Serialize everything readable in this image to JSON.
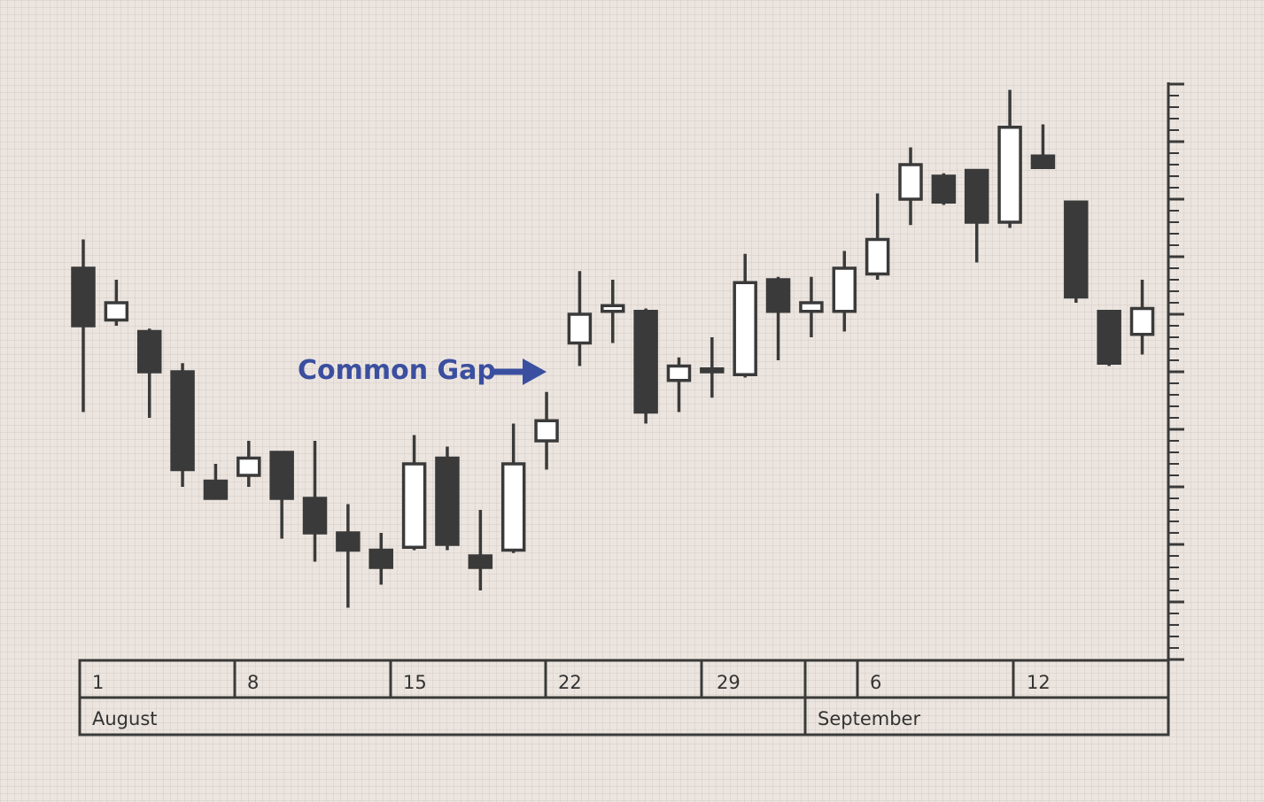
{
  "colors": {
    "candle": "#3a3a3a",
    "hollow_fill": "#ffffff",
    "frame": "#3a3a3a",
    "annotation": "#3a4f9f"
  },
  "annotation": {
    "text": "Common Gap"
  },
  "chart_data": {
    "type": "candlestick",
    "xlabel": "",
    "ylabel": "",
    "ylim": [
      0,
      100
    ],
    "y_tick_labels": "none",
    "grid": true,
    "sessions": [
      {
        "open": 68.0,
        "high": 73.0,
        "low": 43.0,
        "close": 58.0
      },
      {
        "open": 59.0,
        "high": 66.0,
        "low": 58.0,
        "close": 62.0
      },
      {
        "open": 57.0,
        "high": 57.5,
        "low": 42.0,
        "close": 50.0
      },
      {
        "open": 50.0,
        "high": 51.5,
        "low": 30.0,
        "close": 33.0
      },
      {
        "open": 31.0,
        "high": 34.0,
        "low": 28.0,
        "close": 28.0
      },
      {
        "open": 32.0,
        "high": 38.0,
        "low": 30.0,
        "close": 35.0
      },
      {
        "open": 36.0,
        "high": 36.0,
        "low": 21.0,
        "close": 28.0
      },
      {
        "open": 28.0,
        "high": 38.0,
        "low": 17.0,
        "close": 22.0
      },
      {
        "open": 22.0,
        "high": 27.0,
        "low": 9.0,
        "close": 19.0
      },
      {
        "open": 19.0,
        "high": 22.0,
        "low": 13.0,
        "close": 16.0
      },
      {
        "open": 19.5,
        "high": 39.0,
        "low": 19.0,
        "close": 34.0
      },
      {
        "open": 35.0,
        "high": 37.0,
        "low": 19.0,
        "close": 20.0
      },
      {
        "open": 18.0,
        "high": 26.0,
        "low": 12.0,
        "close": 16.0
      },
      {
        "open": 19.0,
        "high": 41.0,
        "low": 18.5,
        "close": 34.0
      },
      {
        "open": 38.0,
        "high": 46.5,
        "low": 33.0,
        "close": 41.5
      },
      {
        "open": 55.0,
        "high": 67.5,
        "low": 51.0,
        "close": 60.0
      },
      {
        "open": 60.5,
        "high": 66.0,
        "low": 55.0,
        "close": 61.5
      },
      {
        "open": 60.5,
        "high": 61.0,
        "low": 41.0,
        "close": 43.0
      },
      {
        "open": 48.5,
        "high": 52.5,
        "low": 43.0,
        "close": 51.0
      },
      {
        "open": 50.5,
        "high": 56.0,
        "low": 45.5,
        "close": 50.0
      },
      {
        "open": 49.5,
        "high": 70.5,
        "low": 49.0,
        "close": 65.5
      },
      {
        "open": 66.0,
        "high": 66.5,
        "low": 52.0,
        "close": 60.5
      },
      {
        "open": 60.5,
        "high": 66.5,
        "low": 56.0,
        "close": 62.0
      },
      {
        "open": 60.5,
        "high": 71.0,
        "low": 57.0,
        "close": 68.0
      },
      {
        "open": 67.0,
        "high": 81.0,
        "low": 66.0,
        "close": 73.0
      },
      {
        "open": 80.0,
        "high": 89.0,
        "low": 75.5,
        "close": 86.0
      },
      {
        "open": 84.0,
        "high": 84.5,
        "low": 79.0,
        "close": 79.5
      },
      {
        "open": 85.0,
        "high": 85.0,
        "low": 69.0,
        "close": 76.0
      },
      {
        "open": 76.0,
        "high": 99.0,
        "low": 75.0,
        "close": 92.5
      },
      {
        "open": 87.5,
        "high": 93.0,
        "low": 85.5,
        "close": 85.5
      },
      {
        "open": 79.5,
        "high": 79.5,
        "low": 62.0,
        "close": 63.0
      },
      {
        "open": 60.5,
        "high": 60.5,
        "low": 51.0,
        "close": 51.5
      },
      {
        "open": 56.5,
        "high": 66.0,
        "low": 53.0,
        "close": 61.0
      }
    ],
    "date_labels": [
      "1",
      "8",
      "15",
      "22",
      "29",
      "6",
      "12"
    ],
    "month_labels": [
      "August",
      "September"
    ]
  }
}
